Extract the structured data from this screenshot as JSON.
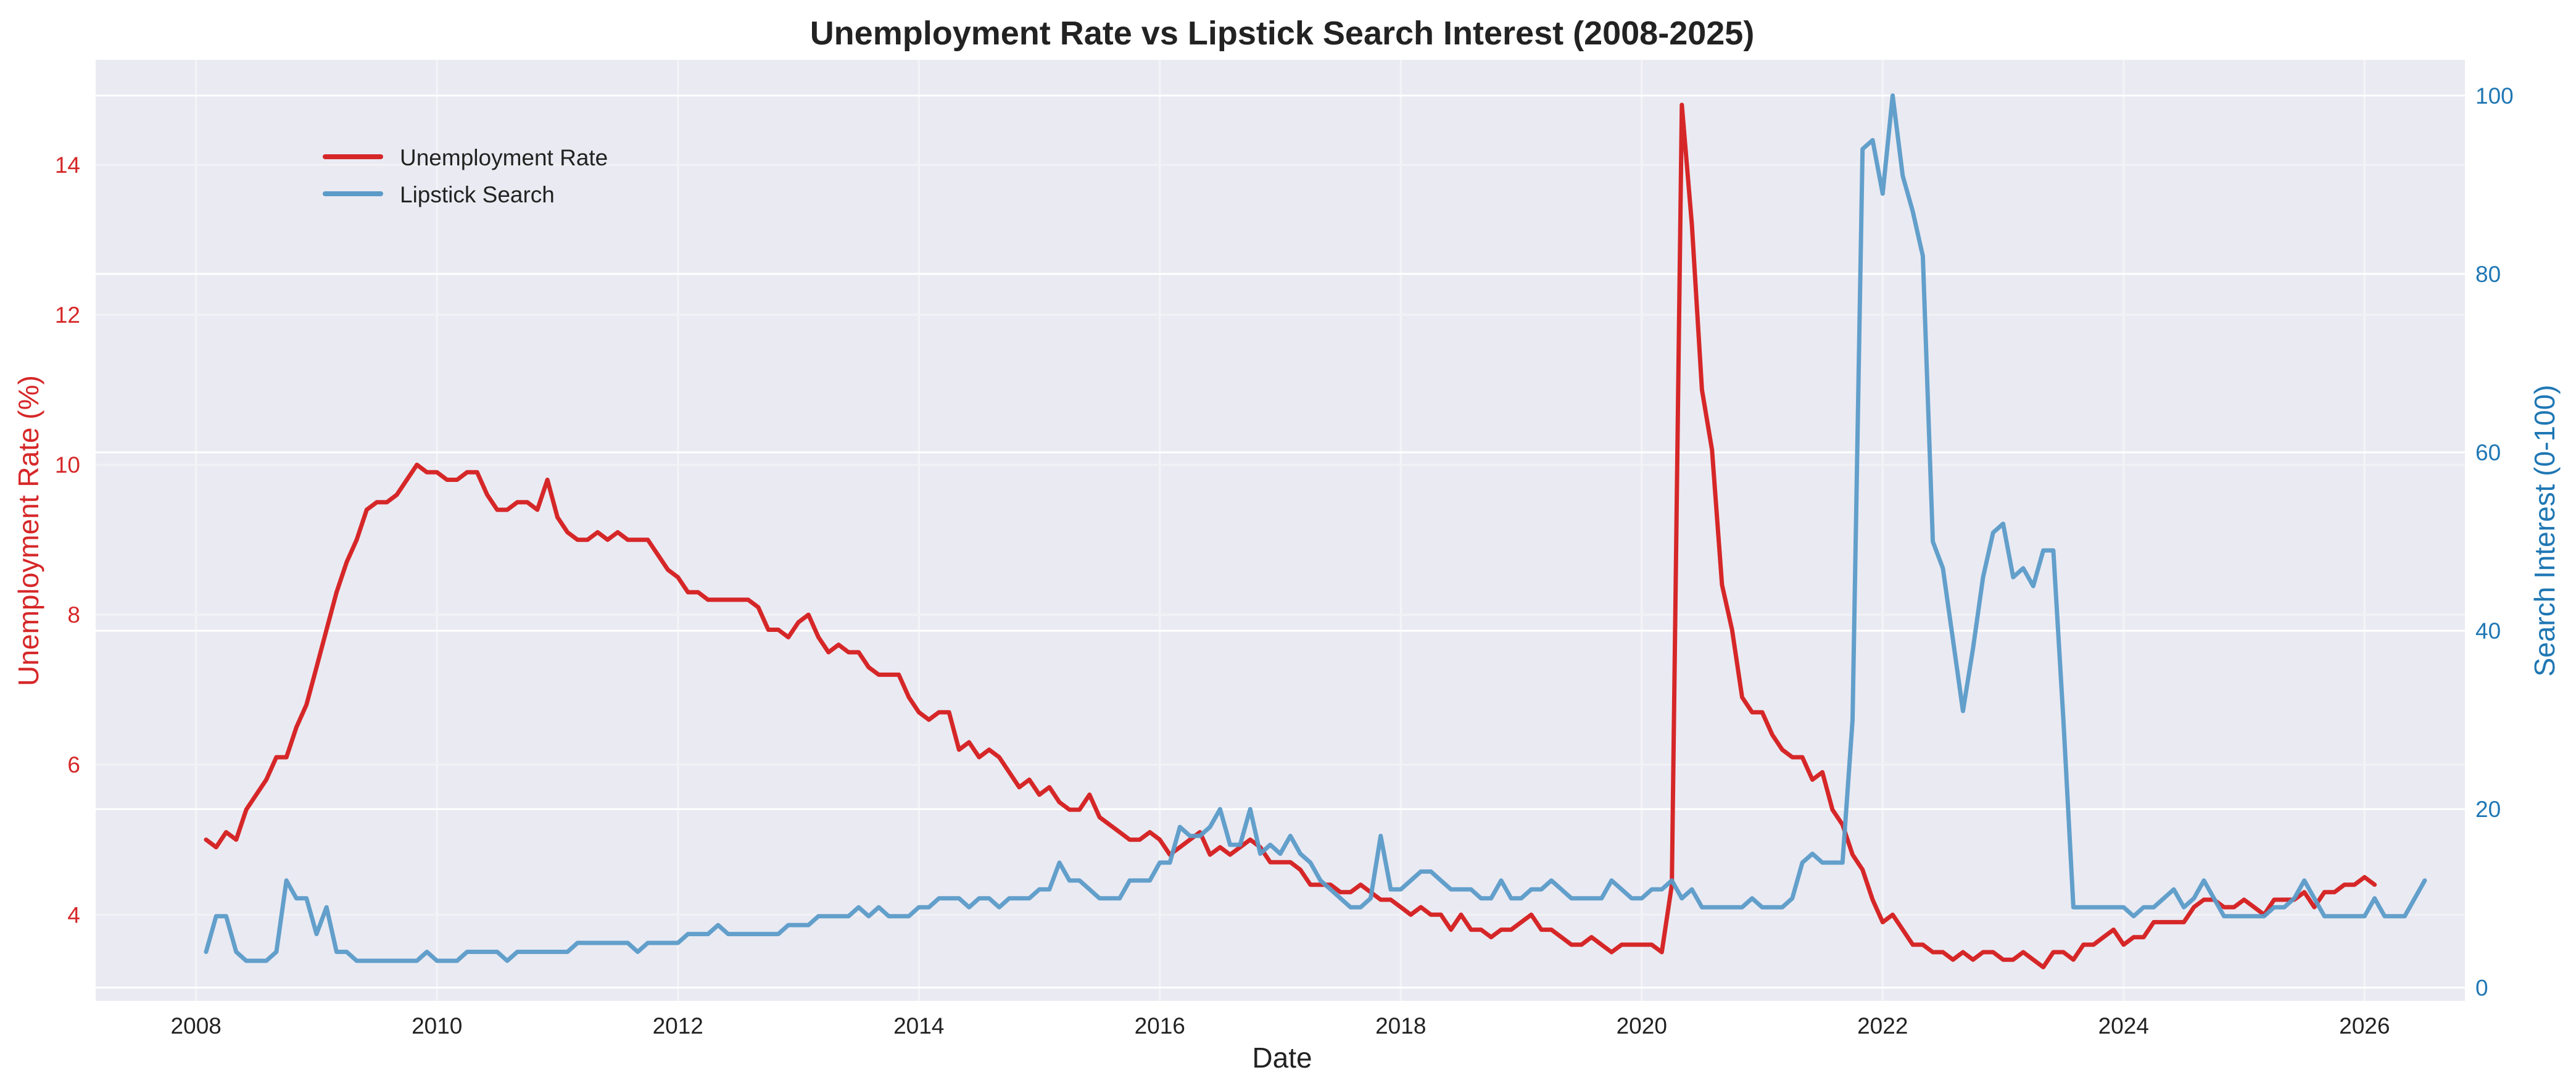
{
  "chart_data": {
    "type": "line",
    "title": "Unemployment Rate vs Lipstick Search Interest (2008-2025)",
    "xlabel": "Date",
    "ylabel_left": "Unemployment Rate (%)",
    "ylabel_right": "Search Interest (0-100)",
    "x_ticks": [
      "2008",
      "2010",
      "2012",
      "2014",
      "2016",
      "2018",
      "2020",
      "2022",
      "2024",
      "2026"
    ],
    "y_left_ticks": [
      4,
      6,
      8,
      10,
      12,
      14
    ],
    "y_right_ticks": [
      0,
      20,
      40,
      60,
      80,
      100
    ],
    "xlim": [
      "2007-03",
      "2026-11"
    ],
    "ylim_left": [
      2.85,
      15.4
    ],
    "ylim_right": [
      -1.5,
      104
    ],
    "grid": true,
    "legend": {
      "position": "upper left",
      "entries": [
        {
          "label": "Unemployment Rate",
          "color": "#d62728"
        },
        {
          "label": "Lipstick Search",
          "color": "#5b9bc8"
        }
      ]
    },
    "x_start": "2008-02",
    "x_frequency": "monthly",
    "series": [
      {
        "name": "Unemployment Rate",
        "axis": "left",
        "color": "#d62728",
        "values": [
          5.0,
          4.9,
          5.1,
          5.0,
          5.4,
          5.6,
          5.8,
          6.1,
          6.1,
          6.5,
          6.8,
          7.3,
          7.8,
          8.3,
          8.7,
          9.0,
          9.4,
          9.5,
          9.5,
          9.6,
          9.8,
          10.0,
          9.9,
          9.9,
          9.8,
          9.8,
          9.9,
          9.9,
          9.6,
          9.4,
          9.4,
          9.5,
          9.5,
          9.4,
          9.8,
          9.3,
          9.1,
          9.0,
          9.0,
          9.1,
          9.0,
          9.1,
          9.0,
          9.0,
          9.0,
          8.8,
          8.6,
          8.5,
          8.3,
          8.3,
          8.2,
          8.2,
          8.2,
          8.2,
          8.2,
          8.1,
          7.8,
          7.8,
          7.7,
          7.9,
          8.0,
          7.7,
          7.5,
          7.6,
          7.5,
          7.5,
          7.3,
          7.2,
          7.2,
          7.2,
          6.9,
          6.7,
          6.6,
          6.7,
          6.7,
          6.2,
          6.3,
          6.1,
          6.2,
          6.1,
          5.9,
          5.7,
          5.8,
          5.6,
          5.7,
          5.5,
          5.4,
          5.4,
          5.6,
          5.3,
          5.2,
          5.1,
          5.0,
          5.0,
          5.1,
          5.0,
          4.8,
          4.9,
          5.0,
          5.1,
          4.8,
          4.9,
          4.8,
          4.9,
          5.0,
          4.9,
          4.7,
          4.7,
          4.7,
          4.6,
          4.4,
          4.4,
          4.4,
          4.3,
          4.3,
          4.4,
          4.3,
          4.2,
          4.2,
          4.1,
          4.0,
          4.1,
          4.0,
          4.0,
          3.8,
          4.0,
          3.8,
          3.8,
          3.7,
          3.8,
          3.8,
          3.9,
          4.0,
          3.8,
          3.8,
          3.7,
          3.6,
          3.6,
          3.7,
          3.6,
          3.5,
          3.6,
          3.6,
          3.6,
          3.6,
          3.5,
          4.4,
          14.8,
          13.2,
          11.0,
          10.2,
          8.4,
          7.8,
          6.9,
          6.7,
          6.7,
          6.4,
          6.2,
          6.1,
          6.1,
          5.8,
          5.9,
          5.4,
          5.2,
          4.8,
          4.6,
          4.2,
          3.9,
          4.0,
          3.8,
          3.6,
          3.6,
          3.5,
          3.5,
          3.4,
          3.5,
          3.4,
          3.5,
          3.5,
          3.4,
          3.4,
          3.5,
          3.4,
          3.3,
          3.5,
          3.5,
          3.4,
          3.6,
          3.6,
          3.7,
          3.8,
          3.6,
          3.7,
          3.7,
          3.9,
          3.9,
          3.9,
          3.9,
          4.1,
          4.2,
          4.2,
          4.1,
          4.1,
          4.2,
          4.1,
          4.0,
          4.2,
          4.2,
          4.2,
          4.3,
          4.1,
          4.3,
          4.3,
          4.4,
          4.4,
          4.5,
          4.4
        ]
      },
      {
        "name": "Lipstick Search",
        "axis": "right",
        "color": "#5b9bc8",
        "values": [
          4,
          8,
          8,
          4,
          3,
          3,
          3,
          4,
          12,
          10,
          10,
          6,
          9,
          4,
          4,
          3,
          3,
          3,
          3,
          3,
          3,
          3,
          4,
          3,
          3,
          3,
          4,
          4,
          4,
          4,
          3,
          4,
          4,
          4,
          4,
          4,
          4,
          5,
          5,
          5,
          5,
          5,
          5,
          4,
          5,
          5,
          5,
          5,
          6,
          6,
          6,
          7,
          6,
          6,
          6,
          6,
          6,
          6,
          7,
          7,
          7,
          8,
          8,
          8,
          8,
          9,
          8,
          9,
          8,
          8,
          8,
          9,
          9,
          10,
          10,
          10,
          9,
          10,
          10,
          9,
          10,
          10,
          10,
          11,
          11,
          14,
          12,
          12,
          11,
          10,
          10,
          10,
          12,
          12,
          12,
          14,
          14,
          18,
          17,
          17,
          18,
          20,
          16,
          16,
          20,
          15,
          16,
          15,
          17,
          15,
          14,
          12,
          11,
          10,
          9,
          9,
          10,
          17,
          11,
          11,
          12,
          13,
          13,
          12,
          11,
          11,
          11,
          10,
          10,
          12,
          10,
          10,
          11,
          11,
          12,
          11,
          10,
          10,
          10,
          10,
          12,
          11,
          10,
          10,
          11,
          11,
          12,
          10,
          11,
          9,
          9,
          9,
          9,
          9,
          10,
          9,
          9,
          9,
          10,
          14,
          15,
          14,
          14,
          14,
          30,
          94,
          95,
          89,
          100,
          91,
          87,
          82,
          50,
          47,
          39,
          31,
          38,
          46,
          51,
          52,
          46,
          47,
          45,
          49,
          49,
          30,
          9,
          9,
          9,
          9,
          9,
          9,
          8,
          9,
          9,
          10,
          11,
          9,
          10,
          12,
          10,
          8,
          8,
          8,
          8,
          8,
          9,
          9,
          10,
          12,
          10,
          8,
          8,
          8,
          8,
          8,
          10,
          8,
          8,
          8,
          10,
          12
        ]
      }
    ]
  }
}
